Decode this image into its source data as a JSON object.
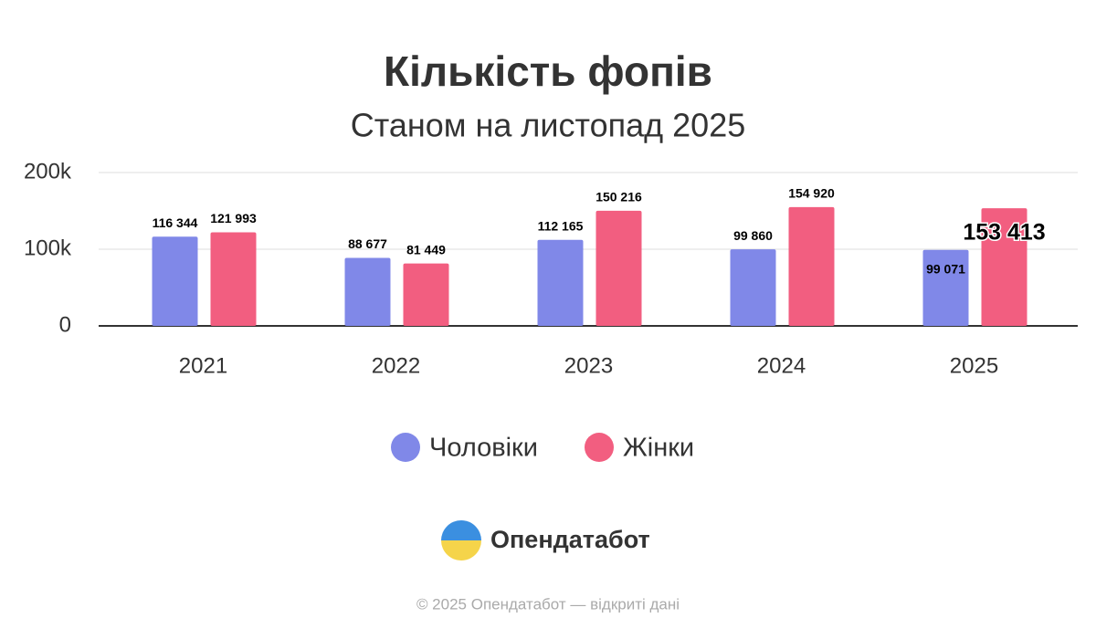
{
  "chart_data": {
    "type": "bar",
    "title": "Кількість фопів",
    "subtitle": "Станом на листопад 2025",
    "categories": [
      "2021",
      "2022",
      "2023",
      "2024",
      "2025"
    ],
    "series": [
      {
        "name": "Чоловіки",
        "color": "#8088e8",
        "values": [
          116344,
          88677,
          112165,
          99860,
          99071
        ],
        "value_labels": [
          "116 344",
          "88 677",
          "112 165",
          "99 860",
          "99 071"
        ]
      },
      {
        "name": "Жінки",
        "color": "#f25e80",
        "values": [
          121993,
          81449,
          150216,
          154920,
          153413
        ],
        "value_labels": [
          "121 993",
          "81 449",
          "150 216",
          "154 920",
          "153 413"
        ]
      }
    ],
    "ylim": [
      0,
      200000
    ],
    "yticks": [
      0,
      {
        "value": 100000,
        "label": "100k"
      },
      {
        "value": 200000,
        "label": "200k"
      }
    ],
    "grid": true,
    "legend": "bottom"
  },
  "logo": {
    "text": "Опендатабот"
  },
  "footer": {
    "text": "© 2025 Опендатабот — відкриті дані"
  }
}
